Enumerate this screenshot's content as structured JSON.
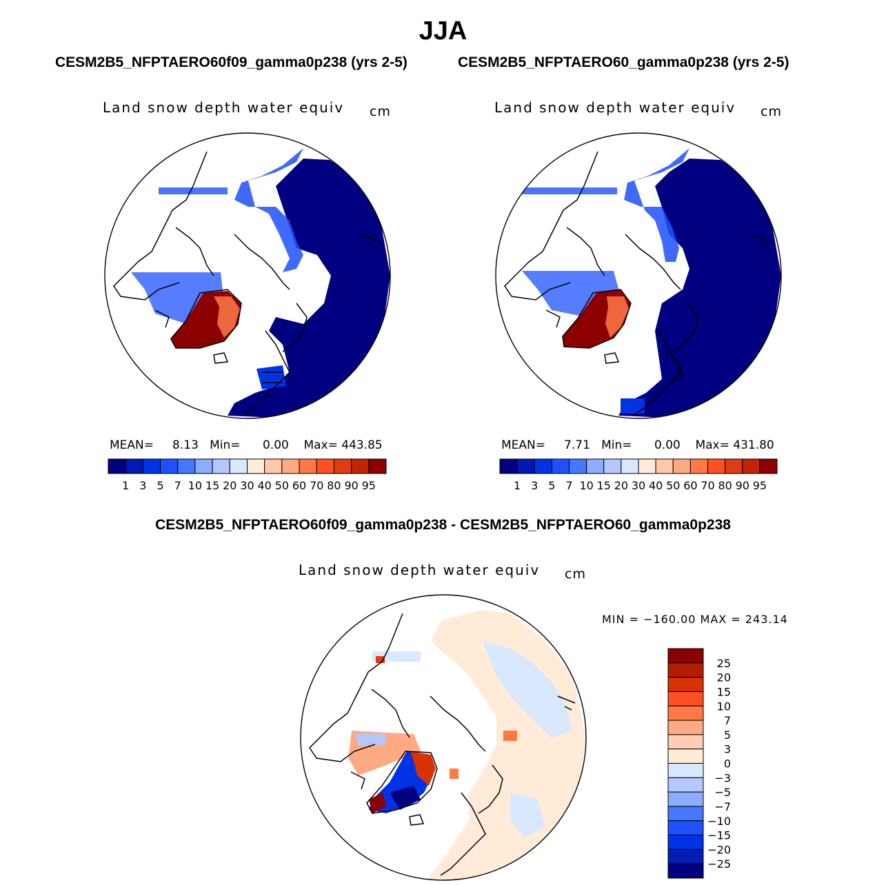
{
  "title": "JJA",
  "colors": {
    "sequential": [
      "#000080",
      "#0018b4",
      "#0032e6",
      "#1e50ff",
      "#4678ff",
      "#8cacff",
      "#b4c8ff",
      "#d8e8ff",
      "#ffebd8",
      "#ffc8a8",
      "#ffaa82",
      "#ff7846",
      "#ff5023",
      "#e13c0f",
      "#c32305",
      "#8c0000"
    ],
    "diverging": [
      "#8c0000",
      "#b41e00",
      "#d73200",
      "#ff5023",
      "#ff7846",
      "#ffaa82",
      "#ffcdb4",
      "#ffebd8",
      "#d8e8ff",
      "#b4c8ff",
      "#8cacff",
      "#4678ff",
      "#1e50ff",
      "#0032e6",
      "#001eb4",
      "#000080"
    ]
  },
  "panels": [
    {
      "title": "CESM2B5_NFPTAERO60f09_gamma0p238 (yrs 2-5)",
      "var_label": "Land snow depth water equiv",
      "units": "cm",
      "stats": {
        "mean_label": "MEAN=",
        "mean": "8.13",
        "min_label": "Min=",
        "min": "0.00",
        "max_label": "Max=",
        "max": "443.85"
      }
    },
    {
      "title": "CESM2B5_NFPTAERO60_gamma0p238 (yrs 2-5)",
      "var_label": "Land snow depth water equiv",
      "units": "cm",
      "stats": {
        "mean_label": "MEAN=",
        "mean": "7.71",
        "min_label": "Min=",
        "min": "0.00",
        "max_label": "Max=",
        "max": "431.80"
      }
    }
  ],
  "difference": {
    "title": "CESM2B5_NFPTAERO60f09_gamma0p238 - CESM2B5_NFPTAERO60_gamma0p238",
    "var_label": "Land snow depth water equiv",
    "units": "cm",
    "minmax": "MIN = −160.00 MAX = 243.14"
  },
  "chart_data": [
    {
      "type": "heatmap",
      "title": "CESM2B5_NFPTAERO60f09_gamma0p238 (yrs 2-5)",
      "projection": "north polar stereographic",
      "variable": "Land snow depth water equiv",
      "units": "cm",
      "mean": 8.13,
      "min": 0.0,
      "max": 443.85,
      "colorbar_levels": [
        "1",
        "3",
        "5",
        "7",
        "10",
        "15",
        "20",
        "30",
        "40",
        "50",
        "60",
        "70",
        "80",
        "90",
        "95"
      ]
    },
    {
      "type": "heatmap",
      "title": "CESM2B5_NFPTAERO60_gamma0p238 (yrs 2-5)",
      "projection": "north polar stereographic",
      "variable": "Land snow depth water equiv",
      "units": "cm",
      "mean": 7.71,
      "min": 0.0,
      "max": 431.8,
      "colorbar_levels": [
        "1",
        "3",
        "5",
        "7",
        "10",
        "15",
        "20",
        "30",
        "40",
        "50",
        "60",
        "70",
        "80",
        "90",
        "95"
      ]
    },
    {
      "type": "heatmap",
      "title": "CESM2B5_NFPTAERO60f09_gamma0p238 - CESM2B5_NFPTAERO60_gamma0p238",
      "projection": "north polar stereographic",
      "variable": "Land snow depth water equiv",
      "units": "cm",
      "min": -160.0,
      "max": 243.14,
      "colorbar_levels": [
        "25",
        "20",
        "15",
        "10",
        "7",
        "5",
        "3",
        "0",
        "−3",
        "−5",
        "−7",
        "−10",
        "−15",
        "−20",
        "−25"
      ]
    }
  ]
}
